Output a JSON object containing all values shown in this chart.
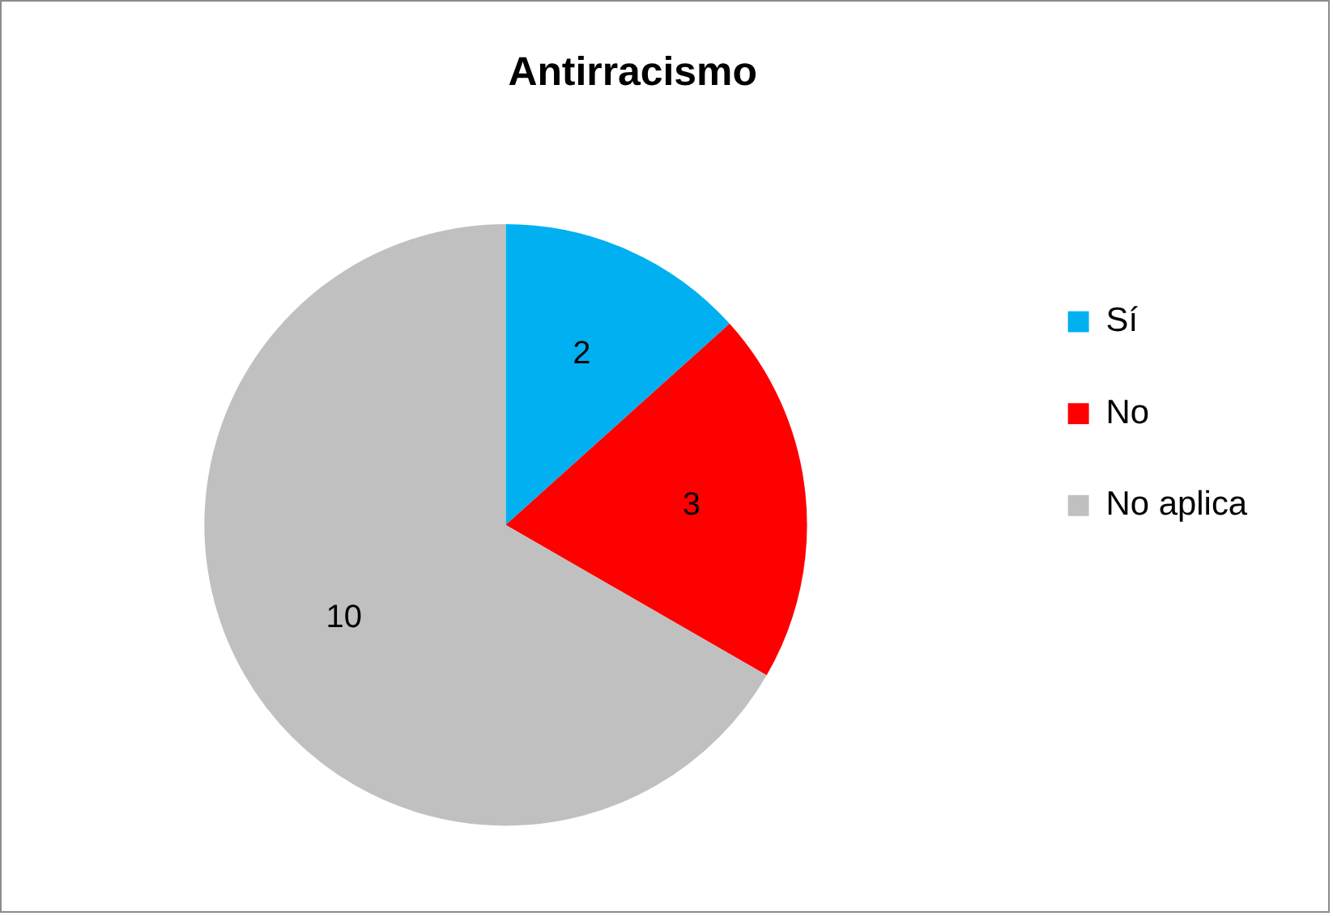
{
  "chart_data": {
    "type": "pie",
    "title": "Antirracismo",
    "categories": [
      "Sí",
      "No",
      "No aplica"
    ],
    "values": [
      2,
      3,
      10
    ],
    "colors": [
      "#00b0f0",
      "#ff0000",
      "#c0c0c0"
    ],
    "data_labels": true,
    "legend": "right"
  }
}
